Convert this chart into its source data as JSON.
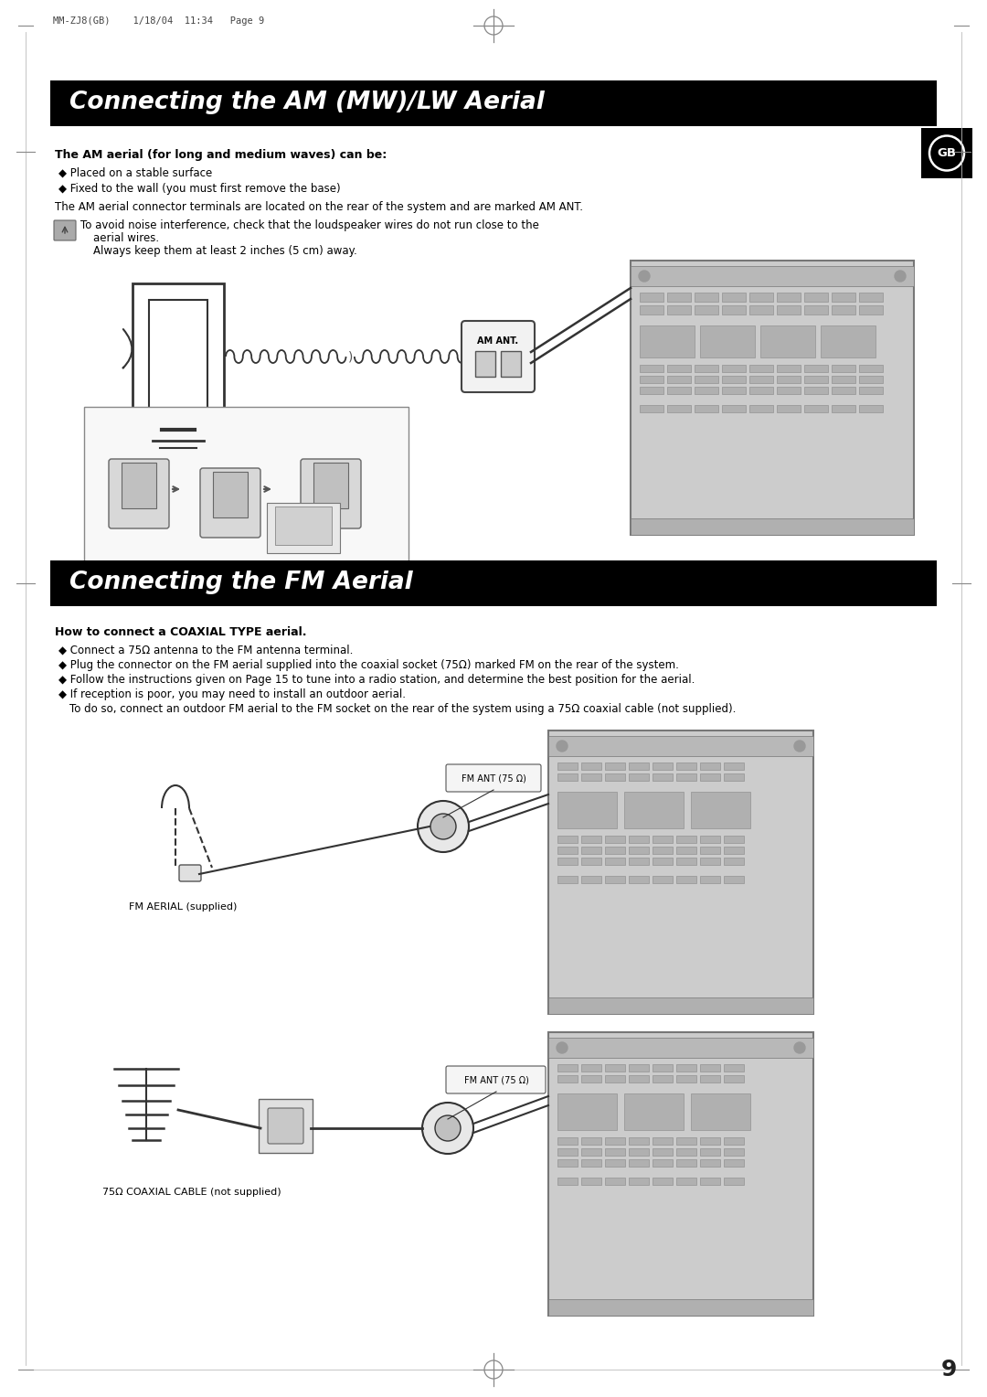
{
  "page_bg": "#ffffff",
  "header_text": "MM-ZJ8(GB)    1/18/04  11:34   Page 9",
  "title1": "Connecting the AM (MW)/LW Aerial",
  "title2": "Connecting the FM Aerial",
  "title_bg": "#000000",
  "title_fg": "#ffffff",
  "gb_bg": "#000000",
  "gb_fg": "#ffffff",
  "section1_bold_heading": "The AM aerial (for long and medium waves) can be:",
  "section1_bullets": [
    "◆ Placed on a stable surface",
    "◆ Fixed to the wall (you must first remove the base)"
  ],
  "section1_note": "The AM aerial connector terminals are located on the rear of the system and are marked AM ANT.",
  "section1_warning_line1": "To avoid noise interference, check that the loudspeaker wires do not run close to the",
  "section1_warning_line2": "aerial wires.",
  "section1_warning_line3": "Always keep them at least 2 inches (5 cm) away.",
  "section2_bold_heading": "How to connect a COAXIAL TYPE aerial.",
  "section2_bullet1": "◆ Connect a 75Ω antenna to the FM antenna terminal.",
  "section2_bullet2": "◆ Plug the connector on the FM aerial supplied into the coaxial socket (75Ω) marked FM on the rear of the system.",
  "section2_bullet3": "◆ Follow the instructions given on Page 15 to tune into a radio station, and determine the best position for the aerial.",
  "section2_bullet4": "◆ If reception is poor, you may need to install an outdoor aerial.",
  "section2_bullet4b": "  To do so, connect an outdoor FM aerial to the FM socket on the rear of the system using a 75Ω coaxial cable (not supplied).",
  "fm_aerial_label": "FM AERIAL (supplied)",
  "fm_cable_label": "75Ω COAXIAL CABLE (not supplied)",
  "fm_ant_label1": "FM ANT (75 Ω)",
  "fm_ant_label2": "FM ANT (75 Ω)",
  "am_ant_label": "AM ANT.",
  "page_number": "9",
  "crosshair_color": "#888888",
  "slot_color": "#999999",
  "system_color": "#cccccc",
  "system_edge": "#777777",
  "line_color": "#333333"
}
